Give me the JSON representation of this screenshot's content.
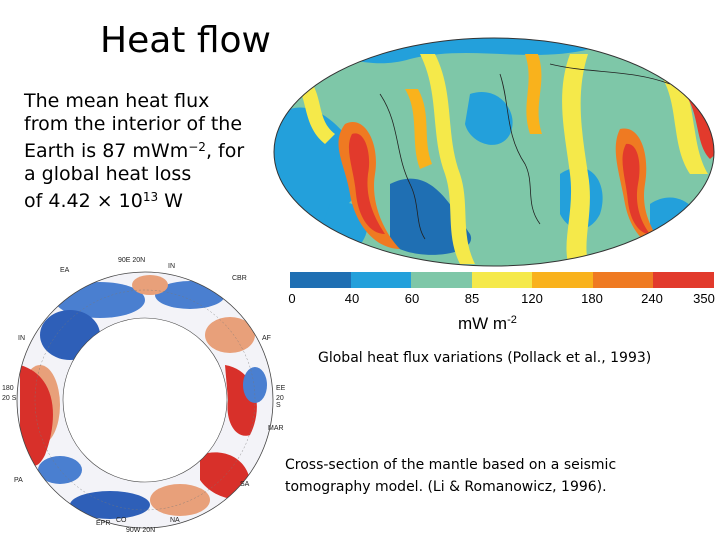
{
  "slide": {
    "title": "Heat flow",
    "intro_lines": [
      "The mean heat flux",
      "from the interior of the",
      "Earth is 87 mWm",
      "−2",
      ", for",
      "a global heat loss",
      "of 4.42 × 10",
      "13",
      " W"
    ]
  },
  "heat_map": {
    "colorbar_colors": [
      "#1f6fb3",
      "#23a0db",
      "#7ec7a8",
      "#f5e94a",
      "#f9b21c",
      "#ef7a22",
      "#e23a2c",
      "#d8172c"
    ],
    "tick_labels": [
      "0",
      "40",
      "60",
      "85",
      "120",
      "180",
      "240",
      "350"
    ],
    "unit_base": "mW m",
    "unit_exp": "-2",
    "caption": "Global heat flux variations (Pollack et al., 1993)"
  },
  "tomography": {
    "labels": {
      "top": "90E 20N",
      "top_left": "EA",
      "top_right_1": "IN",
      "right_1": "CBR",
      "right_2": "AF",
      "right_3": "EE",
      "right_4": "20 S",
      "right_5": "MAR",
      "right_6": "SA",
      "left_1": "IN",
      "left_2": "180",
      "left_3": "20 S",
      "left_4": "PA",
      "bottom_1": "EPR",
      "bottom_2": "CO",
      "bottom_3": "NA",
      "bottom": "90W 20N"
    },
    "caption": "Cross-section of the mantle based on a seismic tomography model. (Li & Romanowicz, 1996)."
  }
}
